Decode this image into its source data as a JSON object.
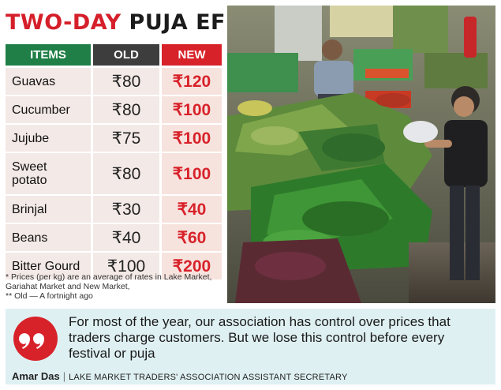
{
  "headline": {
    "part1": "TWO-DAY",
    "part2": "PUJA EFFECT"
  },
  "table": {
    "headers": [
      "ITEMS",
      "OLD",
      "NEW"
    ],
    "rows": [
      {
        "item": "Guavas",
        "old": "₹80",
        "new": "₹120"
      },
      {
        "item": "Cucumber",
        "old": "₹80",
        "new": "₹100"
      },
      {
        "item": "Jujube",
        "old": "₹75",
        "new": "₹100"
      },
      {
        "item": "Sweet potato",
        "old": "₹80",
        "new": "₹100"
      },
      {
        "item": "Brinjal",
        "old": "₹30",
        "new": "₹40"
      },
      {
        "item": "Beans",
        "old": "₹40",
        "new": "₹60"
      },
      {
        "item": "Bitter Gourd",
        "old": "₹100",
        "new": "₹200"
      }
    ]
  },
  "footnotes": [
    "* Prices (per kg) are an average of rates in Lake Market, Gariahat Market and New Market,",
    "** Old — A fortnight ago"
  ],
  "photo": {
    "icon": "vegetable-market-photo"
  },
  "quote": {
    "text": "For most of the year, our association has control over prices that traders charge customers. But we lose this control before every festival or puja",
    "speaker": "Amar Das",
    "speaker_title": "LAKE MARKET TRADERS' ASSOCIATION ASSISTANT SECRETARY",
    "icon": "quote-mark-icon"
  },
  "colors": {
    "accent_red": "#d8222a",
    "items_header_green": "#1f7f46",
    "old_header_dark": "#3d3d3d",
    "row_background": "#f3e9e6",
    "quote_background": "#dff0f2"
  }
}
